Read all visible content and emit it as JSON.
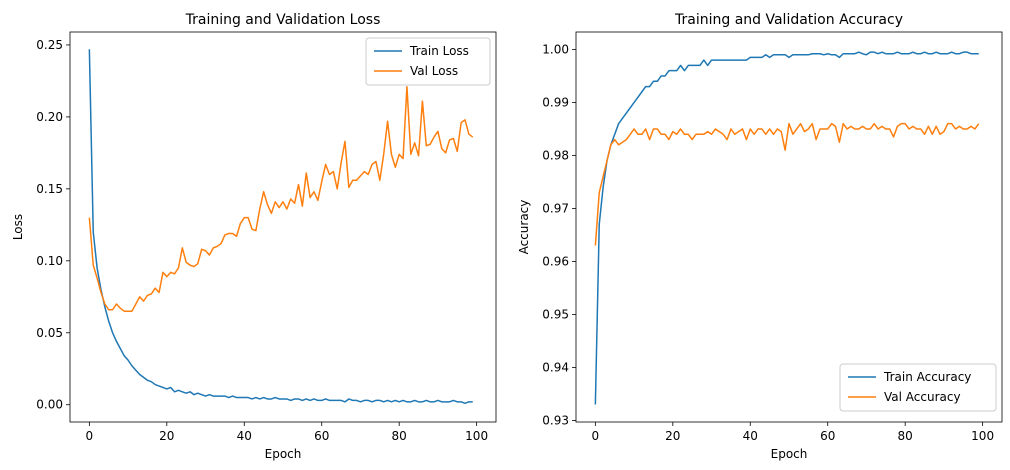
{
  "chart_data": [
    {
      "type": "line",
      "title": "Training and Validation Loss",
      "xlabel": "Epoch",
      "ylabel": "Loss",
      "xlim": [
        -5,
        105
      ],
      "ylim": [
        -0.012,
        0.259
      ],
      "xticks": [
        0,
        20,
        40,
        60,
        80,
        100
      ],
      "xtick_labels": [
        "0",
        "20",
        "40",
        "60",
        "80",
        "100"
      ],
      "yticks": [
        0.0,
        0.05,
        0.1,
        0.15,
        0.2,
        0.25
      ],
      "ytick_labels": [
        "0.00",
        "0.05",
        "0.10",
        "0.15",
        "0.20",
        "0.25"
      ],
      "legend_position": "top-right",
      "x": [
        0,
        1,
        2,
        3,
        4,
        5,
        6,
        7,
        8,
        9,
        10,
        11,
        12,
        13,
        14,
        15,
        16,
        17,
        18,
        19,
        20,
        21,
        22,
        23,
        24,
        25,
        26,
        27,
        28,
        29,
        30,
        31,
        32,
        33,
        34,
        35,
        36,
        37,
        38,
        39,
        40,
        41,
        42,
        43,
        44,
        45,
        46,
        47,
        48,
        49,
        50,
        51,
        52,
        53,
        54,
        55,
        56,
        57,
        58,
        59,
        60,
        61,
        62,
        63,
        64,
        65,
        66,
        67,
        68,
        69,
        70,
        71,
        72,
        73,
        74,
        75,
        76,
        77,
        78,
        79,
        80,
        81,
        82,
        83,
        84,
        85,
        86,
        87,
        88,
        89,
        90,
        91,
        92,
        93,
        94,
        95,
        96,
        97,
        98,
        99
      ],
      "series": [
        {
          "name": "Train Loss",
          "color": "#1f77b4",
          "values": [
            0.247,
            0.12,
            0.095,
            0.08,
            0.068,
            0.058,
            0.05,
            0.044,
            0.039,
            0.034,
            0.031,
            0.027,
            0.024,
            0.021,
            0.019,
            0.017,
            0.016,
            0.014,
            0.013,
            0.012,
            0.011,
            0.012,
            0.009,
            0.01,
            0.009,
            0.008,
            0.009,
            0.007,
            0.008,
            0.007,
            0.006,
            0.007,
            0.006,
            0.006,
            0.006,
            0.006,
            0.005,
            0.006,
            0.005,
            0.005,
            0.005,
            0.005,
            0.004,
            0.005,
            0.004,
            0.005,
            0.004,
            0.004,
            0.005,
            0.004,
            0.004,
            0.004,
            0.003,
            0.004,
            0.004,
            0.003,
            0.004,
            0.003,
            0.004,
            0.003,
            0.003,
            0.004,
            0.003,
            0.003,
            0.003,
            0.003,
            0.002,
            0.004,
            0.003,
            0.003,
            0.002,
            0.003,
            0.003,
            0.002,
            0.003,
            0.003,
            0.002,
            0.003,
            0.002,
            0.003,
            0.002,
            0.003,
            0.002,
            0.002,
            0.003,
            0.002,
            0.002,
            0.003,
            0.002,
            0.002,
            0.003,
            0.002,
            0.002,
            0.002,
            0.003,
            0.002,
            0.002,
            0.001,
            0.002,
            0.002
          ]
        },
        {
          "name": "Val Loss",
          "color": "#ff7f0e",
          "values": [
            0.13,
            0.097,
            0.088,
            0.078,
            0.07,
            0.066,
            0.066,
            0.07,
            0.067,
            0.065,
            0.065,
            0.065,
            0.07,
            0.075,
            0.072,
            0.076,
            0.077,
            0.081,
            0.078,
            0.092,
            0.089,
            0.092,
            0.091,
            0.095,
            0.109,
            0.099,
            0.097,
            0.096,
            0.098,
            0.108,
            0.107,
            0.104,
            0.109,
            0.11,
            0.112,
            0.118,
            0.119,
            0.119,
            0.117,
            0.126,
            0.13,
            0.13,
            0.122,
            0.121,
            0.136,
            0.148,
            0.139,
            0.133,
            0.141,
            0.137,
            0.141,
            0.136,
            0.143,
            0.14,
            0.153,
            0.138,
            0.161,
            0.144,
            0.148,
            0.142,
            0.155,
            0.167,
            0.16,
            0.162,
            0.15,
            0.168,
            0.183,
            0.151,
            0.156,
            0.156,
            0.159,
            0.162,
            0.16,
            0.167,
            0.169,
            0.156,
            0.174,
            0.197,
            0.174,
            0.165,
            0.174,
            0.171,
            0.221,
            0.174,
            0.182,
            0.173,
            0.211,
            0.18,
            0.181,
            0.186,
            0.19,
            0.178,
            0.175,
            0.184,
            0.185,
            0.176,
            0.196,
            0.198,
            0.188,
            0.186
          ]
        }
      ]
    },
    {
      "type": "line",
      "title": "Training and Validation Accuracy",
      "xlabel": "Epoch",
      "ylabel": "Accuracy",
      "xlim": [
        -5,
        105
      ],
      "ylim": [
        0.9297,
        1.0033
      ],
      "xticks": [
        0,
        20,
        40,
        60,
        80,
        100
      ],
      "xtick_labels": [
        "0",
        "20",
        "40",
        "60",
        "80",
        "100"
      ],
      "yticks": [
        0.93,
        0.94,
        0.95,
        0.96,
        0.97,
        0.98,
        0.99,
        1.0
      ],
      "ytick_labels": [
        "0.93",
        "0.94",
        "0.95",
        "0.96",
        "0.97",
        "0.98",
        "0.99",
        "1.00"
      ],
      "legend_position": "bottom-right",
      "x": [
        0,
        1,
        2,
        3,
        4,
        5,
        6,
        7,
        8,
        9,
        10,
        11,
        12,
        13,
        14,
        15,
        16,
        17,
        18,
        19,
        20,
        21,
        22,
        23,
        24,
        25,
        26,
        27,
        28,
        29,
        30,
        31,
        32,
        33,
        34,
        35,
        36,
        37,
        38,
        39,
        40,
        41,
        42,
        43,
        44,
        45,
        46,
        47,
        48,
        49,
        50,
        51,
        52,
        53,
        54,
        55,
        56,
        57,
        58,
        59,
        60,
        61,
        62,
        63,
        64,
        65,
        66,
        67,
        68,
        69,
        70,
        71,
        72,
        73,
        74,
        75,
        76,
        77,
        78,
        79,
        80,
        81,
        82,
        83,
        84,
        85,
        86,
        87,
        88,
        89,
        90,
        91,
        92,
        93,
        94,
        95,
        96,
        97,
        98,
        99
      ],
      "series": [
        {
          "name": "Train Accuracy",
          "color": "#1f77b4",
          "values": [
            0.933,
            0.967,
            0.974,
            0.979,
            0.982,
            0.984,
            0.986,
            0.987,
            0.988,
            0.989,
            0.99,
            0.991,
            0.992,
            0.993,
            0.993,
            0.994,
            0.994,
            0.995,
            0.995,
            0.996,
            0.996,
            0.996,
            0.997,
            0.996,
            0.997,
            0.997,
            0.997,
            0.997,
            0.998,
            0.997,
            0.998,
            0.998,
            0.998,
            0.998,
            0.998,
            0.998,
            0.998,
            0.998,
            0.998,
            0.998,
            0.9985,
            0.9985,
            0.9985,
            0.9985,
            0.999,
            0.9985,
            0.999,
            0.999,
            0.999,
            0.999,
            0.9985,
            0.999,
            0.999,
            0.999,
            0.999,
            0.999,
            0.9992,
            0.9992,
            0.9992,
            0.999,
            0.9992,
            0.999,
            0.999,
            0.9985,
            0.9992,
            0.9992,
            0.9992,
            0.9992,
            0.9995,
            0.9992,
            0.999,
            0.9995,
            0.9995,
            0.9992,
            0.9995,
            0.9992,
            0.9992,
            0.9992,
            0.9995,
            0.9992,
            0.9992,
            0.9992,
            0.9995,
            0.9992,
            0.9992,
            0.9995,
            0.9992,
            0.9992,
            0.9995,
            0.9992,
            0.9992,
            0.9992,
            0.9995,
            0.9992,
            0.9992,
            0.9995,
            0.9995,
            0.9992,
            0.9992,
            0.9992
          ]
        },
        {
          "name": "Val Accuracy",
          "color": "#ff7f0e",
          "values": [
            0.963,
            0.973,
            0.976,
            0.979,
            0.982,
            0.983,
            0.982,
            0.9825,
            0.983,
            0.984,
            0.985,
            0.984,
            0.984,
            0.985,
            0.983,
            0.985,
            0.985,
            0.984,
            0.984,
            0.983,
            0.9845,
            0.984,
            0.985,
            0.984,
            0.984,
            0.983,
            0.984,
            0.984,
            0.984,
            0.9845,
            0.984,
            0.985,
            0.9845,
            0.984,
            0.983,
            0.985,
            0.984,
            0.9845,
            0.985,
            0.983,
            0.985,
            0.984,
            0.985,
            0.985,
            0.984,
            0.985,
            0.984,
            0.985,
            0.9845,
            0.981,
            0.986,
            0.984,
            0.985,
            0.986,
            0.9845,
            0.985,
            0.986,
            0.983,
            0.985,
            0.985,
            0.985,
            0.986,
            0.9855,
            0.9825,
            0.986,
            0.985,
            0.9855,
            0.985,
            0.985,
            0.9855,
            0.985,
            0.985,
            0.986,
            0.985,
            0.9855,
            0.985,
            0.985,
            0.9835,
            0.9855,
            0.986,
            0.986,
            0.985,
            0.9855,
            0.985,
            0.985,
            0.984,
            0.9855,
            0.984,
            0.9855,
            0.984,
            0.9845,
            0.986,
            0.986,
            0.985,
            0.9855,
            0.985,
            0.985,
            0.9855,
            0.985,
            0.986
          ]
        }
      ]
    }
  ]
}
